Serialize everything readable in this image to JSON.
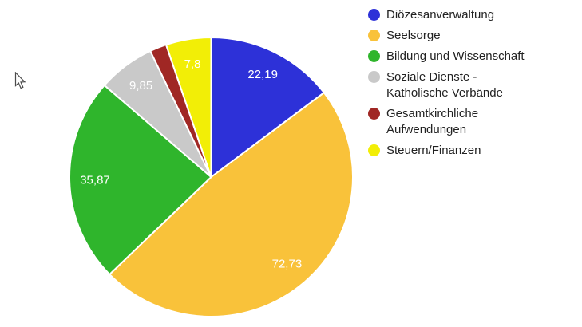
{
  "page": {
    "background_color": "#ffffff"
  },
  "chart_data": {
    "type": "pie",
    "start_angle_deg": 0,
    "direction": "clockwise",
    "legend_position": "right",
    "slice_border_color": "#ffffff",
    "value_label_color": "#ffffff",
    "legend_text_color": "#222222",
    "series": [
      {
        "label": "Diözesanverwaltung",
        "value": 22.19,
        "display_value": "22,19",
        "color": "#2D31D8"
      },
      {
        "label": "Seelsorge",
        "value": 72.73,
        "display_value": "72,73",
        "color": "#F9C23A"
      },
      {
        "label": "Bildung und Wissenschaft",
        "value": 35.87,
        "display_value": "35,87",
        "color": "#2FB52C"
      },
      {
        "label": "Soziale Dienste -\nKatholische Verbände",
        "value": 9.85,
        "display_value": "9,85",
        "color": "#C9C9C9"
      },
      {
        "label": "Gesamtkirchliche\nAufwendungen",
        "value": 2.9,
        "display_value": "",
        "value_estimated": true,
        "color": "#A02724"
      },
      {
        "label": "Steuern/Finanzen",
        "value": 7.8,
        "display_value": "7,8",
        "color": "#F2EE06"
      }
    ]
  },
  "cursor": {
    "present": true
  }
}
